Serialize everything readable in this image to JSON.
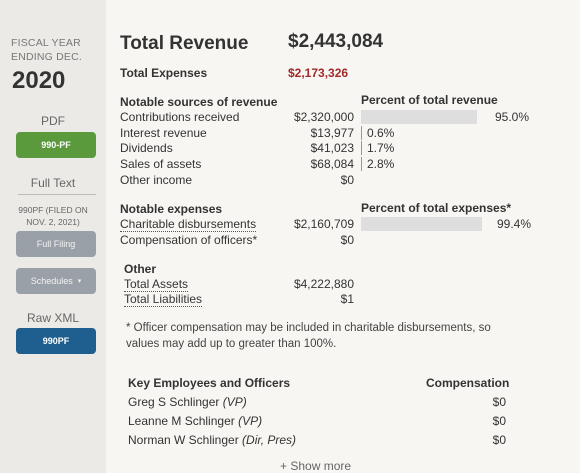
{
  "sidebar": {
    "fiscal_label_line1": "FISCAL YEAR",
    "fiscal_label_line2": "ENDING DEC.",
    "year": "2020",
    "pdf_heading": "PDF",
    "pdf_button": "990-PF",
    "full_text_heading": "Full Text",
    "filed_note_line1": "990PF (FILED ON",
    "filed_note_line2": "NOV. 2, 2021)",
    "full_filing_button": "Full Filing",
    "schedules_button": "Schedules",
    "raw_xml_heading": "Raw XML",
    "raw_xml_button": "990PF"
  },
  "summary": {
    "total_revenue_label": "Total Revenue",
    "total_revenue_value": "$2,443,084",
    "total_expenses_label": "Total Expenses",
    "total_expenses_value": "$2,173,326"
  },
  "revenue": {
    "heading": "Notable sources of revenue",
    "pct_heading": "Percent of total revenue",
    "rows": [
      {
        "label": "Contributions received",
        "value": "$2,320,000",
        "pct": "95.0%",
        "fraction": 0.95
      },
      {
        "label": "Interest revenue",
        "value": "$13,977",
        "pct": "0.6%",
        "fraction": 0.006
      },
      {
        "label": "Dividends",
        "value": "$41,023",
        "pct": "1.7%",
        "fraction": 0.017
      },
      {
        "label": "Sales of assets",
        "value": "$68,084",
        "pct": "2.8%",
        "fraction": 0.028
      },
      {
        "label": "Other income",
        "value": "$0",
        "pct": "",
        "fraction": 0
      }
    ]
  },
  "expenses": {
    "heading": "Notable expenses",
    "pct_heading": "Percent of total expenses*",
    "rows": [
      {
        "label": "Charitable disbursements",
        "value": "$2,160,709",
        "pct": "99.4%",
        "fraction": 0.994
      },
      {
        "label": "Compensation of officers*",
        "value": "$0",
        "pct": "",
        "fraction": 0
      }
    ]
  },
  "other": {
    "heading": "Other",
    "total_assets_label": "Total Assets",
    "total_assets_value": "$4,222,880",
    "total_liabilities_label": "Total Liabilities",
    "total_liabilities_value": "$1"
  },
  "footnote": "* Officer compensation may be included in charitable disbursements, so values may add up to greater than 100%.",
  "employees": {
    "heading": "Key Employees and Officers",
    "comp_heading": "Compensation",
    "rows": [
      {
        "name": "Greg S Schlinger",
        "role": "(VP)",
        "comp": "$0"
      },
      {
        "name": "Leanne M Schlinger",
        "role": "(VP)",
        "comp": "$0"
      },
      {
        "name": "Norman W Schlinger",
        "role": "(Dir, Pres)",
        "comp": "$0"
      }
    ],
    "show_more": "+ Show more"
  }
}
